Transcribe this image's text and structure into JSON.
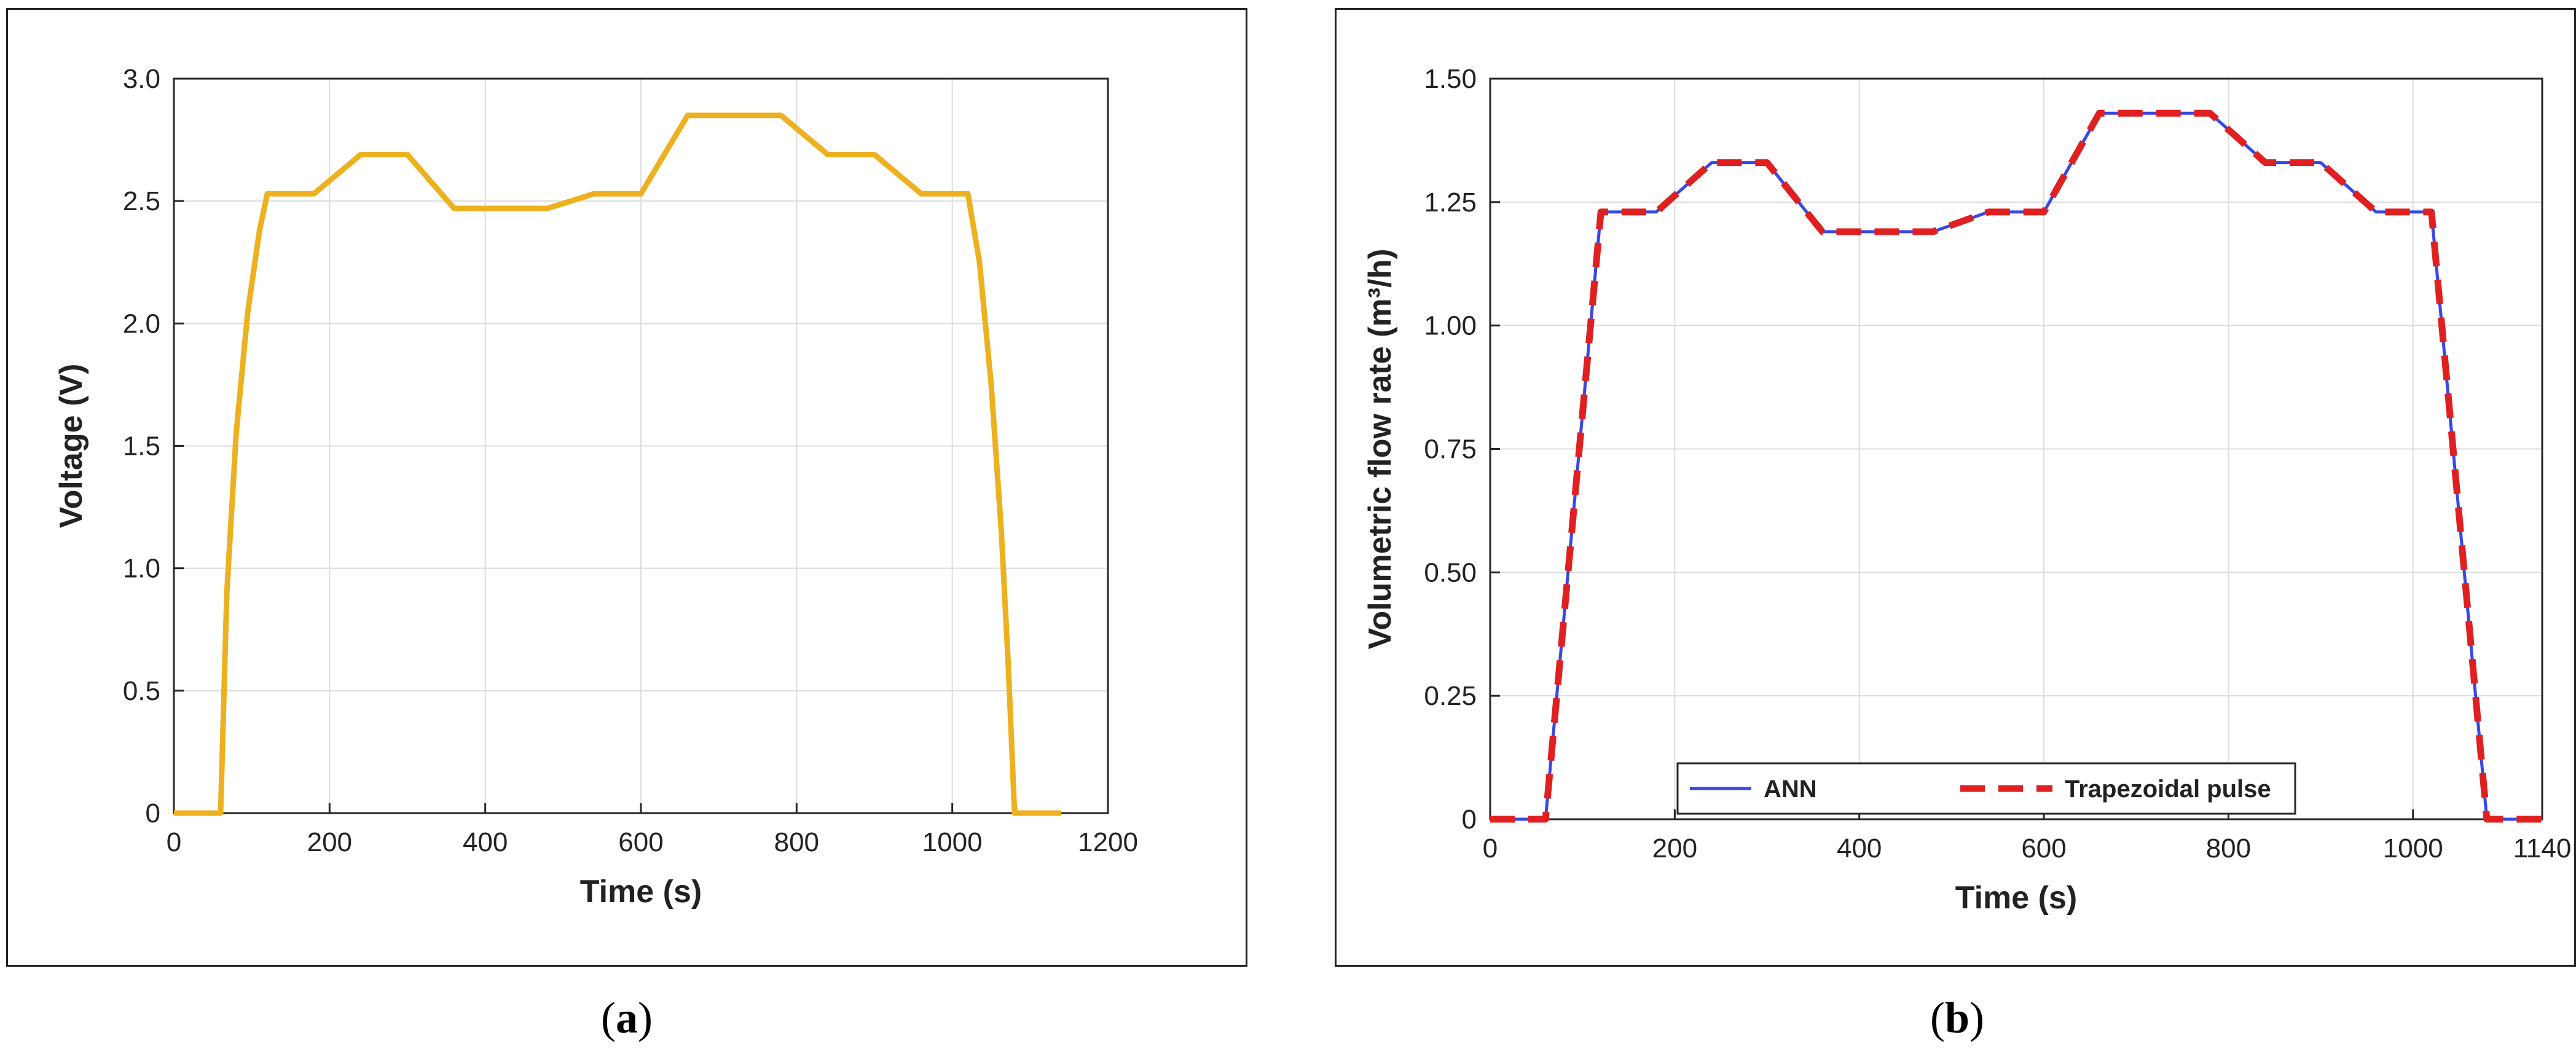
{
  "chart_data": [
    {
      "type": "line",
      "panel_label": "a",
      "title": "",
      "xlabel": "Time (s)",
      "ylabel": "Voltage (V)",
      "xlim": [
        0,
        1200
      ],
      "ylim": [
        0,
        3.0
      ],
      "xticks": [
        0,
        200,
        400,
        600,
        800,
        1000,
        1200
      ],
      "xtick_labels": [
        "0",
        "200",
        "400",
        "600",
        "800",
        "1000",
        "1200"
      ],
      "yticks": [
        0,
        0.5,
        1.0,
        1.5,
        2.0,
        2.5,
        3.0
      ],
      "ytick_labels": [
        "0",
        "0.5",
        "1.0",
        "1.5",
        "2.0",
        "2.5",
        "3.0"
      ],
      "grid": true,
      "colors": {
        "series": "#EDB120"
      },
      "series": [
        {
          "x": [
            0,
            60,
            68,
            80,
            95,
            110,
            120,
            180,
            240,
            300,
            360,
            420,
            480,
            540,
            600,
            660,
            720,
            780,
            840,
            900,
            960,
            1020,
            1035,
            1050,
            1063,
            1072,
            1080,
            1140
          ],
          "y": [
            0,
            0,
            0.9,
            1.55,
            2.05,
            2.38,
            2.53,
            2.53,
            2.69,
            2.69,
            2.47,
            2.47,
            2.47,
            2.53,
            2.53,
            2.85,
            2.85,
            2.85,
            2.69,
            2.69,
            2.53,
            2.53,
            2.25,
            1.75,
            1.15,
            0.6,
            0,
            0
          ]
        }
      ]
    },
    {
      "type": "line",
      "panel_label": "b",
      "title": "",
      "xlabel": "Time (s)",
      "ylabel": "Volumetric flow rate (m³/h)",
      "xlim": [
        0,
        1140
      ],
      "ylim": [
        0,
        1.5
      ],
      "xticks": [
        0,
        200,
        400,
        600,
        800,
        1000,
        1140
      ],
      "xtick_labels": [
        "0",
        "200",
        "400",
        "600",
        "800",
        "1000",
        "1140"
      ],
      "yticks": [
        0,
        0.25,
        0.5,
        0.75,
        1.0,
        1.25,
        1.5
      ],
      "ytick_labels": [
        "0",
        "0.25",
        "0.50",
        "0.75",
        "1.00",
        "1.25",
        "1.50"
      ],
      "grid": true,
      "legend": "bottom-center",
      "colors": {
        "ANN": "#3B48E0",
        "Trapezoidal pulse": "#E02020"
      },
      "series": [
        {
          "name": "ANN",
          "x": [
            0,
            60,
            120,
            180,
            240,
            300,
            360,
            420,
            480,
            540,
            600,
            660,
            720,
            780,
            840,
            900,
            960,
            1020,
            1080,
            1140
          ],
          "y": [
            0,
            0,
            1.23,
            1.23,
            1.33,
            1.33,
            1.19,
            1.19,
            1.19,
            1.23,
            1.23,
            1.43,
            1.43,
            1.43,
            1.33,
            1.33,
            1.23,
            1.23,
            0,
            0
          ]
        },
        {
          "name": "Trapezoidal pulse",
          "x": [
            0,
            60,
            120,
            180,
            240,
            300,
            360,
            420,
            480,
            540,
            600,
            660,
            720,
            780,
            840,
            900,
            960,
            1020,
            1080,
            1140
          ],
          "y": [
            0,
            0,
            1.23,
            1.23,
            1.33,
            1.33,
            1.19,
            1.19,
            1.19,
            1.23,
            1.23,
            1.43,
            1.43,
            1.43,
            1.33,
            1.33,
            1.23,
            1.23,
            0,
            0
          ]
        }
      ]
    }
  ],
  "captions": {
    "a": "a",
    "b": "b"
  }
}
